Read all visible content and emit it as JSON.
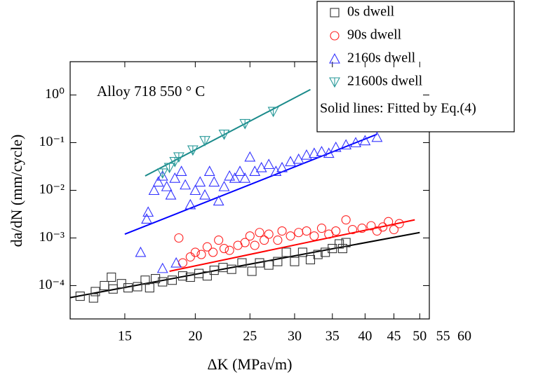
{
  "chart_data": {
    "type": "scatter",
    "x_label": "ΔK (MPa√m)",
    "y_label": "da/dN (mm/cycle)",
    "annotation": "Alloy 718 550 ° C",
    "legend_note": "Solid lines: Fitted by Eq.(4)",
    "legend": "upper right",
    "log_x": true,
    "log_y": true,
    "xlim": [
      12,
      52
    ],
    "ylim": [
      2e-05,
      5
    ],
    "xticks": [
      15,
      20,
      25,
      30,
      35,
      40,
      45,
      50,
      55,
      60
    ],
    "yticks": [
      {
        "value": 0.0001,
        "label": "10⁻⁴"
      },
      {
        "value": 0.001,
        "label": "10⁻³"
      },
      {
        "value": 0.01,
        "label": "10⁻²"
      },
      {
        "value": 0.1,
        "label": "10⁻¹"
      },
      {
        "value": 1,
        "label": "10⁰"
      }
    ],
    "series": [
      {
        "name": "0s dwell",
        "marker": "square",
        "color": "#333333",
        "x": [
          12.5,
          13.2,
          13.3,
          13.8,
          14.2,
          14.3,
          14.8,
          15.2,
          15.8,
          16.3,
          16.6,
          17,
          17.5,
          18.2,
          19,
          19.6,
          20.3,
          21,
          21.6,
          22.4,
          23.2,
          24.2,
          25.2,
          26,
          27,
          28,
          29,
          30,
          31,
          32,
          33,
          34,
          35,
          36,
          36.5,
          37
        ],
        "values": [
          6e-05,
          5.5e-05,
          7.5e-05,
          0.0001,
          0.00015,
          8.5e-05,
          0.00011,
          9e-05,
          9.5e-05,
          0.00013,
          9e-05,
          0.00014,
          0.00012,
          0.00013,
          0.00016,
          0.00015,
          0.00018,
          0.00016,
          0.00021,
          0.00024,
          0.00022,
          0.0003,
          0.0002,
          0.0003,
          0.00027,
          0.00032,
          0.0005,
          0.00032,
          0.0005,
          0.00035,
          0.00045,
          0.0005,
          0.0006,
          0.00075,
          0.0006,
          0.0008
        ],
        "fit": {
          "color": "#000000",
          "x": [
            12,
            50
          ],
          "values": [
            5.6e-05,
            0.0013
          ]
        }
      },
      {
        "name": "90s dwell",
        "marker": "circle",
        "color": "#ff2020",
        "x": [
          18.7,
          19,
          19.6,
          20,
          20.5,
          21,
          21.5,
          22,
          22.5,
          23,
          23.8,
          24.5,
          25,
          25.5,
          26,
          26.5,
          27,
          28,
          28.5,
          29.5,
          30.5,
          31.5,
          32.5,
          33.5,
          34.5,
          35.5,
          37,
          38,
          39.5,
          41,
          42,
          43,
          44,
          45,
          46
        ],
        "values": [
          0.001,
          0.0003,
          0.0004,
          0.0005,
          0.00045,
          0.00065,
          0.0005,
          0.0009,
          0.0006,
          0.00055,
          0.0007,
          0.0008,
          0.0011,
          0.0007,
          0.0013,
          0.0009,
          0.0012,
          0.0009,
          0.0014,
          0.0011,
          0.0013,
          0.0014,
          0.0011,
          0.0016,
          0.0012,
          0.0014,
          0.0024,
          0.0015,
          0.0016,
          0.0018,
          0.0014,
          0.0017,
          0.0022,
          0.0015,
          0.002
        ],
        "fit": {
          "color": "#ff0000",
          "x": [
            18,
            49
          ],
          "values": [
            0.0002,
            0.0024
          ]
        }
      },
      {
        "name": "2160s dwell",
        "marker": "triangle",
        "color": "#3333ff",
        "x": [
          16,
          16.4,
          16.5,
          16.9,
          17.2,
          17.5,
          17.5,
          17.8,
          18.1,
          18.4,
          18.5,
          18.9,
          19.2,
          19.6,
          20,
          20.4,
          20.8,
          21.2,
          21.6,
          22,
          22.5,
          23,
          23.5,
          24,
          24.5,
          25,
          25.5,
          26.2,
          27,
          27.8,
          28.5,
          29.5,
          30.5,
          31.5,
          32.5,
          33.5,
          34.5,
          35.5,
          37,
          38.5,
          40,
          42
        ],
        "values": [
          0.0005,
          0.0025,
          0.0035,
          0.01,
          0.015,
          0.02,
          0.00023,
          0.012,
          0.008,
          0.018,
          0.0003,
          0.025,
          0.013,
          0.005,
          0.01,
          0.015,
          0.008,
          0.025,
          0.015,
          0.006,
          0.012,
          0.02,
          0.018,
          0.025,
          0.018,
          0.05,
          0.025,
          0.03,
          0.035,
          0.025,
          0.03,
          0.04,
          0.045,
          0.055,
          0.06,
          0.065,
          0.06,
          0.08,
          0.09,
          0.1,
          0.11,
          0.13
        ],
        "fit": {
          "color": "#0000ff",
          "x": [
            15,
            42
          ],
          "values": [
            0.0012,
            0.15
          ]
        }
      },
      {
        "name": "21600s dwell",
        "marker": "tri-down",
        "color": "#2a9a9a",
        "x": [
          17.5,
          18,
          18.4,
          18.7,
          19.8,
          20.8,
          22.5,
          24.5,
          27.5
        ],
        "values": [
          0.023,
          0.03,
          0.04,
          0.05,
          0.07,
          0.11,
          0.15,
          0.25,
          0.45
        ],
        "fit": {
          "color": "#1a8a8a",
          "x": [
            16.3,
            32
          ],
          "values": [
            0.02,
            1.3
          ]
        }
      }
    ]
  }
}
